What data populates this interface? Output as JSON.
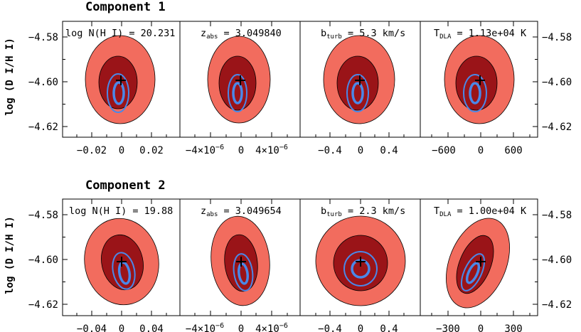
{
  "chart_data": {
    "type": "contour",
    "description_axis": "log (D I/H I)",
    "ylim": [
      -4.625,
      -4.574
    ],
    "yticks": [
      "-4.58",
      "-4.60",
      "-4.62"
    ],
    "yticks_values": [
      -4.58,
      -4.6,
      -4.62
    ],
    "colors": {
      "outer_fill": "#f26c5e",
      "inner_fill": "#9a1418",
      "contour_line": "#4a88e8",
      "edge": "#000000"
    },
    "components": [
      {
        "title": "Component 1",
        "ylabel": "log (D I/H I)",
        "panels": [
          {
            "label": "log N(H I) = 20.231",
            "xticks": [
              "-0.02",
              "0",
              "0.02"
            ],
            "xtick_values": [
              -0.02,
              0,
              0.02
            ],
            "xlim": [
              -0.032,
              0.032
            ],
            "best_fit": [
              0,
              -4.601
            ]
          },
          {
            "label": "z_abs = 3.049840",
            "label_main": "z",
            "label_sub": "abs",
            "label_rest": " = 3.049840",
            "xticks": [
              "-4×10-6",
              "0",
              "4×10-6"
            ],
            "xtick_values": [
              -4e-06,
              0,
              4e-06
            ],
            "xlim": [
              -6.4e-06,
              6.4e-06
            ],
            "best_fit": [
              0,
              -4.601
            ]
          },
          {
            "label": "b_turb = 5.3 km/s",
            "label_main": "b",
            "label_sub": "turb",
            "label_rest": " = 5.3 km/s",
            "xticks": [
              "-0.4",
              "0",
              "0.4"
            ],
            "xtick_values": [
              -0.4,
              0,
              0.4
            ],
            "xlim": [
              -0.64,
              0.64
            ],
            "best_fit": [
              0,
              -4.601
            ]
          },
          {
            "label": "T_DLA = 1.13e+04 K",
            "label_main": "T",
            "label_sub": "DLA",
            "label_rest": " = 1.13e+04 K",
            "xticks": [
              "-600",
              "0",
              "600"
            ],
            "xtick_values": [
              -600,
              0,
              600
            ],
            "xlim": [
              -960,
              960
            ],
            "best_fit": [
              0,
              -4.601
            ]
          }
        ]
      },
      {
        "title": "Component 2",
        "ylabel": "log (D I/H I)",
        "panels": [
          {
            "label": "log N(H I) = 19.88",
            "xticks": [
              "-0.04",
              "0",
              "0.04"
            ],
            "xtick_values": [
              -0.04,
              0,
              0.04
            ],
            "xlim": [
              -0.064,
              0.064
            ],
            "best_fit": [
              0,
              -4.601
            ]
          },
          {
            "label": "z_abs = 3.049654",
            "label_main": "z",
            "label_sub": "abs",
            "label_rest": " = 3.049654",
            "xticks": [
              "-4×10-6",
              "0",
              "4×10-6"
            ],
            "xtick_values": [
              -4e-06,
              0,
              4e-06
            ],
            "xlim": [
              -6.4e-06,
              6.4e-06
            ],
            "best_fit": [
              0,
              -4.601
            ]
          },
          {
            "label": "b_turb = 2.3 km/s",
            "label_main": "b",
            "label_sub": "turb",
            "label_rest": " = 2.3 km/s",
            "xticks": [
              "-0.4",
              "0",
              "0.4"
            ],
            "xtick_values": [
              -0.4,
              0,
              0.4
            ],
            "xlim": [
              -0.64,
              0.64
            ],
            "best_fit": [
              0,
              -4.601
            ]
          },
          {
            "label": "T_DLA = 1.00e+04 K",
            "label_main": "T",
            "label_sub": "DLA",
            "label_rest": " = 1.00e+04 K",
            "xticks": [
              "-300",
              "0",
              "300"
            ],
            "xtick_values": [
              -300,
              0,
              300
            ],
            "xlim": [
              -480,
              480
            ],
            "best_fit": [
              0,
              -4.601
            ]
          }
        ]
      }
    ]
  }
}
